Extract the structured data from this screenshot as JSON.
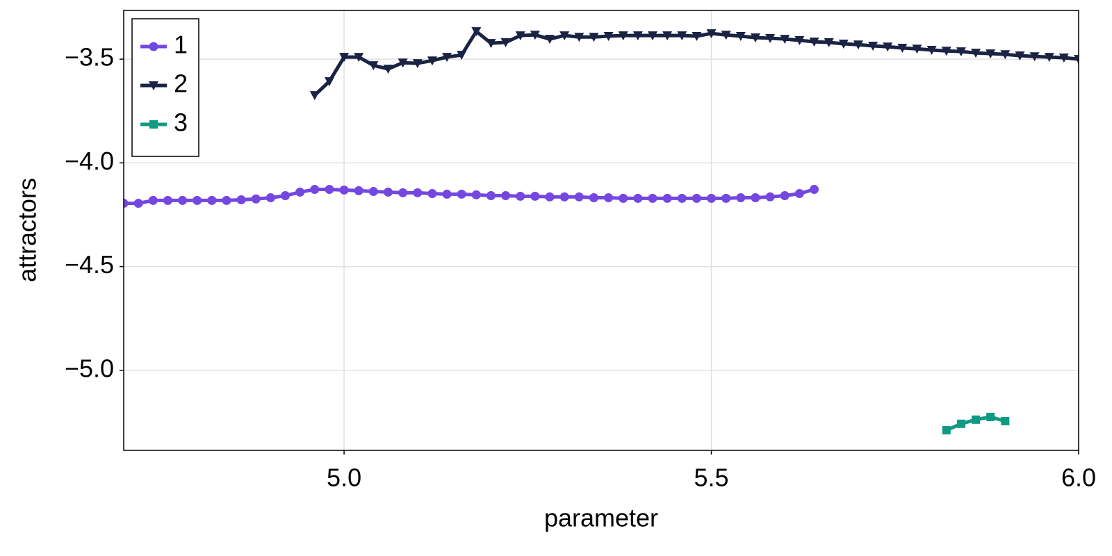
{
  "chart_data": {
    "type": "line",
    "x_label": "parameter",
    "y_label": "attractors",
    "xlim": [
      4.7,
      6.0
    ],
    "ylim": [
      -5.386,
      -3.265
    ],
    "xticks": [
      {
        "value": 5,
        "label": "5.0"
      },
      5.5,
      {
        "value": 6,
        "label": "6.0"
      }
    ],
    "yticks": [
      {
        "value": -3.5,
        "label": "−3.5"
      },
      {
        "value": -4,
        "label": "−4.0"
      },
      {
        "value": -4.5,
        "label": "−4.5"
      },
      {
        "value": -5,
        "label": "−5.0"
      }
    ],
    "grid": true,
    "legend": "top-left",
    "series": [
      {
        "name": "1",
        "color": "#7447e0",
        "marker": "circle",
        "x": [
          4.7,
          4.72,
          4.74,
          4.76,
          4.78,
          4.8,
          4.82,
          4.84,
          4.86,
          4.88,
          4.9,
          4.92,
          4.94,
          4.96,
          4.98,
          5.0,
          5.02,
          5.04,
          5.06,
          5.08,
          5.1,
          5.12,
          5.14,
          5.16,
          5.18,
          5.2,
          5.22,
          5.24,
          5.26,
          5.28,
          5.3,
          5.32,
          5.34,
          5.36,
          5.38,
          5.4,
          5.42,
          5.44,
          5.46,
          5.48,
          5.5,
          5.52,
          5.54,
          5.56,
          5.58,
          5.6,
          5.62,
          5.64
        ],
        "values": [
          -4.195,
          -4.195,
          -4.181,
          -4.181,
          -4.181,
          -4.181,
          -4.181,
          -4.181,
          -4.178,
          -4.174,
          -4.168,
          -4.158,
          -4.141,
          -4.128,
          -4.128,
          -4.131,
          -4.134,
          -4.138,
          -4.141,
          -4.144,
          -4.144,
          -4.148,
          -4.151,
          -4.151,
          -4.154,
          -4.158,
          -4.158,
          -4.161,
          -4.161,
          -4.164,
          -4.164,
          -4.164,
          -4.168,
          -4.168,
          -4.171,
          -4.171,
          -4.171,
          -4.171,
          -4.171,
          -4.171,
          -4.171,
          -4.171,
          -4.168,
          -4.168,
          -4.164,
          -4.158,
          -4.148,
          -4.128
        ]
      },
      {
        "name": "2",
        "color": "#1a2344",
        "marker": "triangle-down",
        "x": [
          4.96,
          4.98,
          5.0,
          5.02,
          5.04,
          5.06,
          5.08,
          5.1,
          5.12,
          5.14,
          5.16,
          5.18,
          5.2,
          5.22,
          5.24,
          5.26,
          5.28,
          5.3,
          5.32,
          5.34,
          5.36,
          5.38,
          5.4,
          5.42,
          5.44,
          5.46,
          5.48,
          5.5,
          5.52,
          5.54,
          5.56,
          5.58,
          5.6,
          5.62,
          5.64,
          5.66,
          5.68,
          5.7,
          5.72,
          5.74,
          5.76,
          5.78,
          5.8,
          5.82,
          5.84,
          5.86,
          5.88,
          5.9,
          5.92,
          5.94,
          5.96,
          5.98,
          6.0
        ],
        "values": [
          -3.674,
          -3.607,
          -3.49,
          -3.49,
          -3.53,
          -3.547,
          -3.517,
          -3.52,
          -3.507,
          -3.49,
          -3.48,
          -3.366,
          -3.423,
          -3.419,
          -3.386,
          -3.383,
          -3.403,
          -3.386,
          -3.393,
          -3.393,
          -3.389,
          -3.386,
          -3.386,
          -3.386,
          -3.386,
          -3.386,
          -3.389,
          -3.376,
          -3.383,
          -3.389,
          -3.396,
          -3.399,
          -3.403,
          -3.409,
          -3.416,
          -3.419,
          -3.426,
          -3.43,
          -3.436,
          -3.44,
          -3.446,
          -3.45,
          -3.456,
          -3.46,
          -3.463,
          -3.47,
          -3.473,
          -3.477,
          -3.483,
          -3.487,
          -3.49,
          -3.493,
          -3.5
        ]
      },
      {
        "name": "3",
        "color": "#0f9a83",
        "marker": "square",
        "x": [
          5.82,
          5.84,
          5.86,
          5.88,
          5.9
        ],
        "values": [
          -5.289,
          -5.258,
          -5.238,
          -5.225,
          -5.245
        ]
      }
    ]
  }
}
